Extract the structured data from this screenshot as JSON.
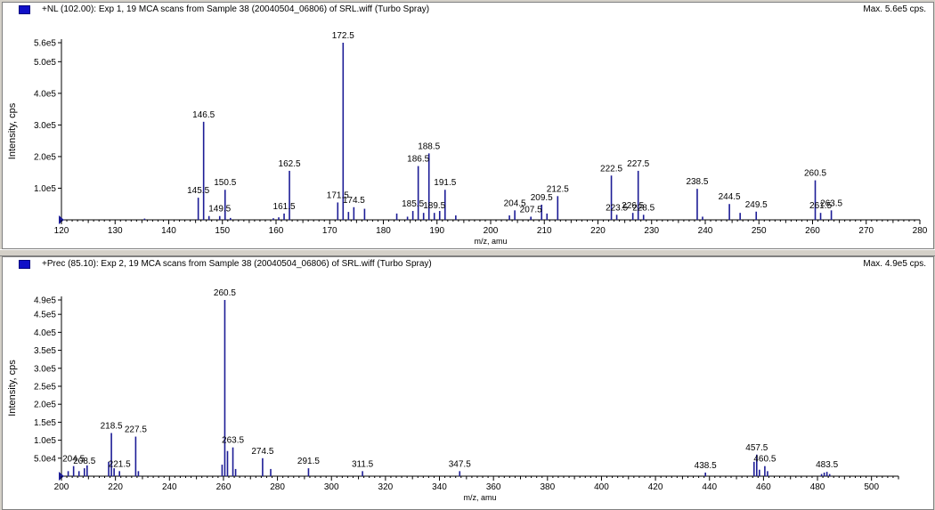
{
  "panes": [
    {
      "title": "+NL (102.00): Exp 1, 19 MCA scans from Sample 38 (20040504_06806) of SRL.wiff (Turbo Spray)",
      "max_text": "Max. 5.6e5 cps."
    },
    {
      "title": "+Prec (85.10): Exp 2, 19 MCA scans from Sample 38 (20040504_06806) of SRL.wiff (Turbo Spray)",
      "max_text": "Max. 4.9e5 cps."
    }
  ],
  "colors": {
    "peak": "#1c1c96",
    "label_line": "#000000",
    "icon": "#1010c8"
  },
  "chart_data": [
    {
      "type": "bar",
      "xlabel": "m/z, amu",
      "ylabel": "Intensity, cps",
      "xlim": [
        120,
        280
      ],
      "ylim": [
        0,
        560000
      ],
      "x_ticks": [
        120,
        130,
        140,
        150,
        160,
        170,
        180,
        190,
        200,
        210,
        220,
        230,
        240,
        250,
        260,
        270,
        280
      ],
      "y_ticks": [
        {
          "value": 100000,
          "label": "1.0e5"
        },
        {
          "value": 200000,
          "label": "2.0e5"
        },
        {
          "value": 300000,
          "label": "3.0e5"
        },
        {
          "value": 400000,
          "label": "4.0e5"
        },
        {
          "value": 500000,
          "label": "5.0e5"
        },
        {
          "value": 560000,
          "label": "5.6e5"
        }
      ],
      "peaks": [
        {
          "x": 135.5,
          "y": 4000
        },
        {
          "x": 145.5,
          "y": 70000,
          "label": "145.5"
        },
        {
          "x": 146.5,
          "y": 310000,
          "label": "146.5"
        },
        {
          "x": 147.5,
          "y": 12000
        },
        {
          "x": 149.5,
          "y": 12000,
          "label": "149.5"
        },
        {
          "x": 150.5,
          "y": 95000,
          "label": "150.5"
        },
        {
          "x": 151.5,
          "y": 6000
        },
        {
          "x": 159.5,
          "y": 5000
        },
        {
          "x": 160.5,
          "y": 8000
        },
        {
          "x": 161.5,
          "y": 20000,
          "label": "161.5"
        },
        {
          "x": 162.5,
          "y": 155000,
          "label": "162.5"
        },
        {
          "x": 171.5,
          "y": 55000,
          "label": "171.5"
        },
        {
          "x": 172.5,
          "y": 560000,
          "label": "172.5"
        },
        {
          "x": 173.5,
          "y": 25000
        },
        {
          "x": 174.5,
          "y": 40000,
          "label": "174.5"
        },
        {
          "x": 176.5,
          "y": 35000
        },
        {
          "x": 182.5,
          "y": 20000
        },
        {
          "x": 184.5,
          "y": 10000
        },
        {
          "x": 185.5,
          "y": 28000,
          "label": "185.5"
        },
        {
          "x": 186.5,
          "y": 170000,
          "label": "186.5"
        },
        {
          "x": 187.5,
          "y": 22000
        },
        {
          "x": 188.5,
          "y": 210000,
          "label": "188.5"
        },
        {
          "x": 189.5,
          "y": 22000,
          "label": "189.5"
        },
        {
          "x": 190.5,
          "y": 28000
        },
        {
          "x": 191.5,
          "y": 95000,
          "label": "191.5"
        },
        {
          "x": 193.5,
          "y": 14000
        },
        {
          "x": 203.5,
          "y": 14000
        },
        {
          "x": 204.5,
          "y": 30000,
          "label": "204.5"
        },
        {
          "x": 207.5,
          "y": 10000,
          "label": "207.5"
        },
        {
          "x": 209.5,
          "y": 48000,
          "label": "209.5"
        },
        {
          "x": 210.5,
          "y": 20000
        },
        {
          "x": 212.5,
          "y": 75000,
          "label": "212.5"
        },
        {
          "x": 222.5,
          "y": 140000,
          "label": "222.5"
        },
        {
          "x": 223.5,
          "y": 16000,
          "label": "223.5"
        },
        {
          "x": 226.5,
          "y": 22000,
          "label": "226.5"
        },
        {
          "x": 227.5,
          "y": 155000,
          "label": "227.5"
        },
        {
          "x": 228.5,
          "y": 16000,
          "label": "228.5"
        },
        {
          "x": 238.5,
          "y": 98000,
          "label": "238.5"
        },
        {
          "x": 239.5,
          "y": 10000
        },
        {
          "x": 244.5,
          "y": 50000,
          "label": "244.5"
        },
        {
          "x": 246.5,
          "y": 22000
        },
        {
          "x": 249.5,
          "y": 26000,
          "label": "249.5"
        },
        {
          "x": 260.5,
          "y": 125000,
          "label": "260.5"
        },
        {
          "x": 261.5,
          "y": 22000,
          "label": "261.5"
        },
        {
          "x": 263.5,
          "y": 30000,
          "label": "263.5"
        }
      ]
    },
    {
      "type": "bar",
      "xlabel": "m/z, amu",
      "ylabel": "Intensity, cps",
      "xlim": [
        200,
        510
      ],
      "ylim": [
        0,
        490000
      ],
      "x_ticks": [
        200,
        220,
        240,
        260,
        280,
        300,
        320,
        340,
        360,
        380,
        400,
        420,
        440,
        460,
        480,
        500
      ],
      "y_ticks": [
        {
          "value": 50000,
          "label": "5.0e4"
        },
        {
          "value": 100000,
          "label": "1.0e5"
        },
        {
          "value": 150000,
          "label": "1.5e5"
        },
        {
          "value": 200000,
          "label": "2.0e5"
        },
        {
          "value": 250000,
          "label": "2.5e5"
        },
        {
          "value": 300000,
          "label": "3.0e5"
        },
        {
          "value": 350000,
          "label": "3.5e5"
        },
        {
          "value": 400000,
          "label": "4.0e5"
        },
        {
          "value": 450000,
          "label": "4.5e5"
        },
        {
          "value": 490000,
          "label": "4.9e5"
        }
      ],
      "peaks": [
        {
          "x": 202.5,
          "y": 14000
        },
        {
          "x": 204.5,
          "y": 28000,
          "label": "204.5"
        },
        {
          "x": 206.5,
          "y": 14000
        },
        {
          "x": 208.5,
          "y": 22000,
          "label": "208.5"
        },
        {
          "x": 209.5,
          "y": 30000
        },
        {
          "x": 217.5,
          "y": 40000
        },
        {
          "x": 218.5,
          "y": 120000,
          "label": "218.5"
        },
        {
          "x": 219.5,
          "y": 22000
        },
        {
          "x": 221.5,
          "y": 14000,
          "label": "221.5"
        },
        {
          "x": 227.5,
          "y": 110000,
          "label": "227.5"
        },
        {
          "x": 228.5,
          "y": 14000
        },
        {
          "x": 259.5,
          "y": 32000
        },
        {
          "x": 260.5,
          "y": 490000,
          "label": "260.5"
        },
        {
          "x": 261.5,
          "y": 70000
        },
        {
          "x": 263.5,
          "y": 80000,
          "label": "263.5"
        },
        {
          "x": 264.5,
          "y": 20000
        },
        {
          "x": 274.5,
          "y": 50000,
          "label": "274.5"
        },
        {
          "x": 277.5,
          "y": 20000
        },
        {
          "x": 291.5,
          "y": 22000,
          "label": "291.5"
        },
        {
          "x": 311.5,
          "y": 14000,
          "label": "311.5"
        },
        {
          "x": 347.5,
          "y": 14000,
          "label": "347.5"
        },
        {
          "x": 438.5,
          "y": 10000,
          "label": "438.5"
        },
        {
          "x": 456.5,
          "y": 40000
        },
        {
          "x": 457.5,
          "y": 60000,
          "label": "457.5"
        },
        {
          "x": 458.5,
          "y": 18000
        },
        {
          "x": 460.5,
          "y": 28000,
          "label": "460.5"
        },
        {
          "x": 461.5,
          "y": 14000
        },
        {
          "x": 481.5,
          "y": 6000
        },
        {
          "x": 482.5,
          "y": 10000
        },
        {
          "x": 483.5,
          "y": 12000,
          "label": "483.5"
        },
        {
          "x": 484.5,
          "y": 6000
        }
      ]
    }
  ]
}
